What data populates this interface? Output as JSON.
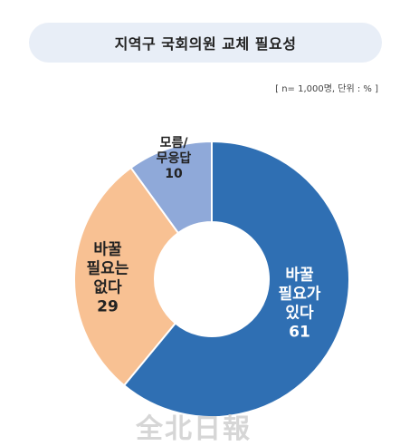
{
  "title": "지역구 국회의원 교체 필요성",
  "note": "[ n= 1,000명, 단위 : % ]",
  "watermark": "全北日報",
  "chart_data": {
    "type": "pie",
    "donut": true,
    "slices": [
      {
        "label_lines": [
          "바꿀",
          "필요가",
          "있다"
        ],
        "value": 61,
        "color": "#2f6fb3",
        "text_color": "#ffffff"
      },
      {
        "label_lines": [
          "바꿀",
          "필요는",
          "없다"
        ],
        "value": 29,
        "color": "#f8c193",
        "text_color": "#222222"
      },
      {
        "label_lines": [
          "모름/",
          "무응답"
        ],
        "value": 10,
        "color": "#8fa9d9",
        "text_color": "#222222"
      }
    ]
  }
}
